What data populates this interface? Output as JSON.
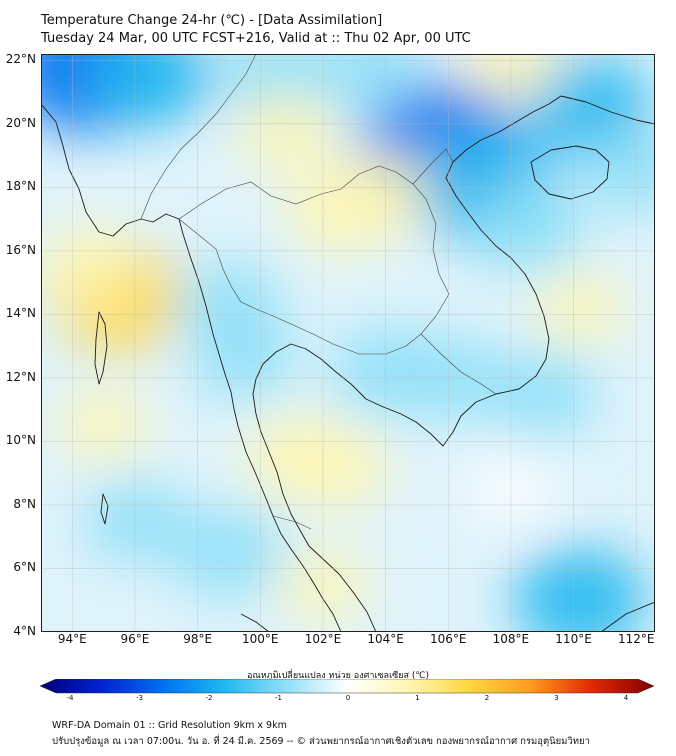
{
  "header": {
    "title": "Temperature Change 24-hr (℃) - [Data Assimilation]",
    "subtitle": "Tuesday 24 Mar, 00 UTC FCST+216, Valid at :: Thu 02 Apr, 00 UTC"
  },
  "axes": {
    "lat_labels": [
      "22°N",
      "20°N",
      "18°N",
      "16°N",
      "14°N",
      "12°N",
      "10°N",
      "8°N",
      "6°N",
      "4°N"
    ],
    "lat_values": [
      22,
      20,
      18,
      16,
      14,
      12,
      10,
      8,
      6,
      4
    ],
    "lon_labels": [
      "94°E",
      "96°E",
      "98°E",
      "100°E",
      "102°E",
      "104°E",
      "106°E",
      "108°E",
      "110°E",
      "112°E"
    ],
    "lon_values": [
      94,
      96,
      98,
      100,
      102,
      104,
      106,
      108,
      110,
      112
    ],
    "lon_range": [
      93,
      112.6
    ],
    "lat_range": [
      4,
      22.2
    ],
    "grid": true
  },
  "colorbar": {
    "title": "อุณหภูมิเปลี่ยนแปลง หน่วย องศาเซลเซียส (℃)",
    "ticks": [
      "-4",
      "-3",
      "-2",
      "-1",
      "0",
      "1",
      "2",
      "3",
      "4"
    ],
    "range": [
      -4,
      4
    ],
    "colors": [
      "#00007a",
      "#0022d0",
      "#0070f0",
      "#1fb8f0",
      "#8ee0f8",
      "#ffffff",
      "#fff6b0",
      "#ffd740",
      "#ff9a20",
      "#e02800",
      "#800000"
    ]
  },
  "field": {
    "blobs": [
      {
        "lon": 94.5,
        "lat": 21.8,
        "value": -2.5
      },
      {
        "lon": 96.5,
        "lat": 21.5,
        "value": -1.4
      },
      {
        "lon": 100.5,
        "lat": 21.5,
        "value": -1.2
      },
      {
        "lon": 105.8,
        "lat": 19.2,
        "value": -2.6
      },
      {
        "lon": 107.2,
        "lat": 18.0,
        "value": -2.0
      },
      {
        "lon": 103.5,
        "lat": 21.8,
        "value": -0.9
      },
      {
        "lon": 100.8,
        "lat": 19.8,
        "value": 0.6
      },
      {
        "lon": 102.5,
        "lat": 17.3,
        "value": 0.9
      },
      {
        "lon": 103.8,
        "lat": 17.8,
        "value": 0.8
      },
      {
        "lon": 95.5,
        "lat": 14.5,
        "value": 1.6
      },
      {
        "lon": 94.5,
        "lat": 15.5,
        "value": 0.7
      },
      {
        "lon": 101.2,
        "lat": 9.5,
        "value": 0.9
      },
      {
        "lon": 102.5,
        "lat": 9.2,
        "value": 0.7
      },
      {
        "lon": 110.5,
        "lat": 20.5,
        "value": -1.5
      },
      {
        "lon": 108.5,
        "lat": 16.8,
        "value": -1.2
      },
      {
        "lon": 110.2,
        "lat": 14.2,
        "value": 0.4
      },
      {
        "lon": 109.0,
        "lat": 11.5,
        "value": -1.0
      },
      {
        "lon": 106.0,
        "lat": 12.0,
        "value": -0.9
      },
      {
        "lon": 104.0,
        "lat": 12.2,
        "value": -1.0
      },
      {
        "lon": 99.0,
        "lat": 14.3,
        "value": -0.9
      },
      {
        "lon": 99.5,
        "lat": 12.6,
        "value": -0.8
      },
      {
        "lon": 99.0,
        "lat": 6.5,
        "value": -1.1
      },
      {
        "lon": 110.2,
        "lat": 5.0,
        "value": -1.6
      },
      {
        "lon": 96.0,
        "lat": 7.5,
        "value": -0.8
      },
      {
        "lon": 112.0,
        "lat": 18.5,
        "value": -0.8
      },
      {
        "lon": 108.0,
        "lat": 22.0,
        "value": 0.5
      },
      {
        "lon": 95.0,
        "lat": 10.5,
        "value": 0.4
      },
      {
        "lon": 102.0,
        "lat": 5.5,
        "value": 0.4
      },
      {
        "lon": 108.0,
        "lat": 8.5,
        "value": 0.3
      }
    ]
  },
  "footer": {
    "line1": "WRF-DA Domain 01 :: Grid Resolution 9km x 9km",
    "line2": "ปรับปรุงข้อมูล ณ เวลา 07:00น. วัน อ. ที่ 24 มี.ค. 2569 -- © ส่วนพยากรณ์อากาศเชิงตัวเลข กองพยากรณ์อากาศ กรมอุตุนิยมวิทยา"
  }
}
